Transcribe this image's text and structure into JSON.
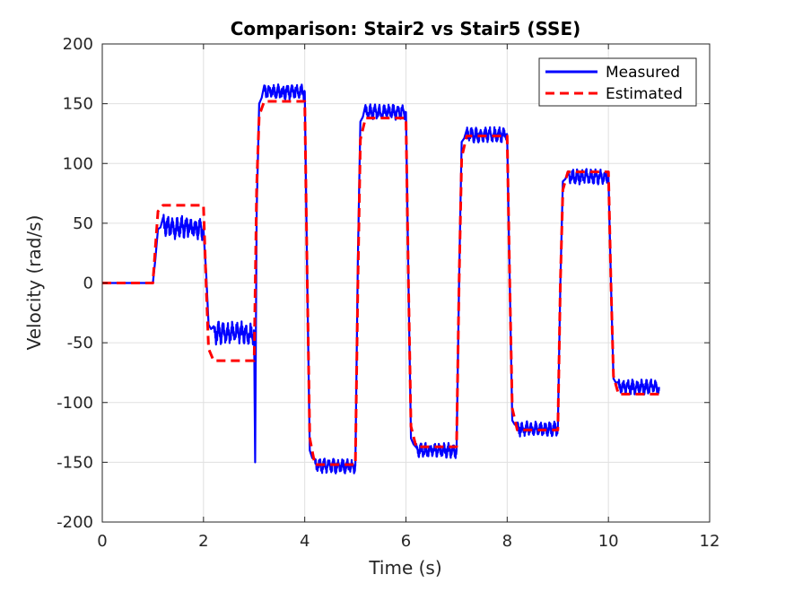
{
  "chart_data": {
    "type": "line",
    "title": "Comparison: Stair2 vs Stair5 (SSE)",
    "xlabel": "Time (s)",
    "ylabel": "Velocity (rad/s)",
    "xlim": [
      0,
      12
    ],
    "ylim": [
      -200,
      200
    ],
    "xticks": [
      "0",
      "2",
      "4",
      "6",
      "8",
      "10",
      "12"
    ],
    "yticks": [
      "200",
      "150",
      "100",
      "50",
      "0",
      "-50",
      "-100",
      "-150",
      "-200"
    ],
    "grid": true,
    "legend_position": "top-right",
    "colors": {
      "measured": "#0000ff",
      "estimated": "#ff0000"
    },
    "series": [
      {
        "name": "Measured",
        "style": "solid",
        "color": "#0000ff",
        "x": [
          0,
          1.0,
          1.05,
          1.1,
          1.2,
          1.4,
          1.6,
          1.8,
          2.0,
          2.05,
          2.1,
          2.2,
          2.4,
          2.6,
          2.8,
          3.0,
          3.02,
          3.05,
          3.1,
          3.2,
          3.4,
          3.6,
          3.8,
          4.0,
          4.05,
          4.1,
          4.2,
          4.4,
          4.6,
          4.8,
          5.0,
          5.05,
          5.1,
          5.2,
          5.4,
          5.6,
          5.8,
          6.0,
          6.05,
          6.1,
          6.2,
          6.4,
          6.6,
          6.8,
          7.0,
          7.05,
          7.1,
          7.2,
          7.4,
          7.6,
          7.8,
          8.0,
          8.05,
          8.1,
          8.2,
          8.4,
          8.6,
          8.8,
          9.0,
          9.05,
          9.1,
          9.2,
          9.4,
          9.6,
          9.8,
          10.0,
          10.05,
          10.1,
          10.2,
          10.4,
          10.6,
          10.8,
          11.0
        ],
        "y": [
          0,
          0,
          20,
          45,
          48,
          46,
          47,
          46,
          45,
          10,
          -35,
          -42,
          -42,
          -42,
          -42,
          -42,
          -150,
          60,
          150,
          160,
          160,
          160,
          160,
          160,
          0,
          -140,
          -153,
          -153,
          -153,
          -153,
          -153,
          20,
          135,
          143,
          143,
          143,
          143,
          143,
          0,
          -130,
          -140,
          -140,
          -140,
          -140,
          -140,
          0,
          118,
          124,
          124,
          124,
          124,
          124,
          0,
          -115,
          -122,
          -122,
          -122,
          -122,
          -122,
          0,
          85,
          89,
          89,
          89,
          89,
          89,
          0,
          -80,
          -87,
          -87,
          -87,
          -87,
          -87
        ]
      },
      {
        "name": "Estimated",
        "style": "dashed",
        "color": "#ff0000",
        "x": [
          0,
          1.0,
          1.05,
          1.1,
          1.2,
          1.4,
          1.6,
          1.8,
          2.0,
          2.05,
          2.1,
          2.2,
          2.4,
          2.6,
          2.8,
          3.0,
          3.05,
          3.1,
          3.2,
          3.4,
          3.6,
          3.8,
          4.0,
          4.05,
          4.1,
          4.2,
          4.4,
          4.6,
          4.8,
          5.0,
          5.05,
          5.1,
          5.2,
          5.4,
          5.6,
          5.8,
          6.0,
          6.05,
          6.1,
          6.2,
          6.4,
          6.6,
          6.8,
          7.0,
          7.05,
          7.1,
          7.2,
          7.4,
          7.6,
          7.8,
          8.0,
          8.05,
          8.1,
          8.2,
          8.4,
          8.6,
          8.8,
          9.0,
          9.05,
          9.1,
          9.2,
          9.4,
          9.6,
          9.8,
          10.0,
          10.05,
          10.1,
          10.2,
          10.4,
          10.6,
          10.8,
          11.0
        ],
        "y": [
          0,
          0,
          30,
          60,
          65,
          65,
          65,
          65,
          65,
          0,
          -55,
          -65,
          -65,
          -65,
          -65,
          -65,
          80,
          140,
          152,
          152,
          152,
          152,
          152,
          0,
          -130,
          -152,
          -152,
          -152,
          -152,
          -152,
          0,
          120,
          138,
          138,
          138,
          138,
          138,
          0,
          -120,
          -137,
          -137,
          -137,
          -137,
          -137,
          0,
          105,
          123,
          123,
          123,
          123,
          123,
          0,
          -105,
          -123,
          -123,
          -123,
          -123,
          -123,
          0,
          78,
          93,
          93,
          93,
          93,
          93,
          0,
          -78,
          -93,
          -93,
          -93,
          -93,
          -93
        ]
      }
    ]
  }
}
